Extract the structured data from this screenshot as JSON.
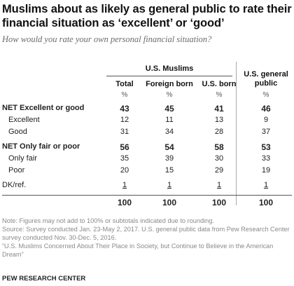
{
  "title": "Muslims about as likely as general public to rate their financial situation as ‘excellent’ or ‘good’",
  "subtitle": "How would you rate your own personal financial situation?",
  "group_header": "U.S. Muslims",
  "columns": [
    "Total",
    "Foreign born",
    "U.S. born",
    "U.S. general public"
  ],
  "pct_symbol": "%",
  "chart_data": {
    "type": "table",
    "title": "Muslims about as likely as general public to rate their financial situation as ‘excellent’ or ‘good’",
    "columns": [
      "Total",
      "Foreign born",
      "U.S. born",
      "U.S. general public"
    ],
    "rows": [
      {
        "label": "NET Excellent or good",
        "values": [
          "43",
          "45",
          "41",
          "46"
        ]
      },
      {
        "label": "Excellent",
        "values": [
          "12",
          "11",
          "13",
          "9"
        ]
      },
      {
        "label": "Good",
        "values": [
          "31",
          "34",
          "28",
          "37"
        ]
      },
      {
        "label": "NET Only fair or poor",
        "values": [
          "56",
          "54",
          "58",
          "53"
        ]
      },
      {
        "label": "Only fair",
        "values": [
          "35",
          "39",
          "30",
          "33"
        ]
      },
      {
        "label": "Poor",
        "values": [
          "20",
          "15",
          "29",
          "19"
        ]
      },
      {
        "label": "DK/ref.",
        "values": [
          "1",
          "1",
          "1",
          "1"
        ]
      },
      {
        "label": "",
        "values": [
          "100",
          "100",
          "100",
          "100"
        ]
      }
    ]
  },
  "notes": [
    "Note: Figures may not add to 100% or subtotals indicated due to rounding.",
    "Source: Survey conducted Jan. 23-May 2, 2017. U.S. general public data from Pew Research Center survey conducted Nov. 30-Dec. 5, 2016.",
    "“U.S. Muslims Concerned About Their Place in Society, but Continue to Believe in the American Dream”"
  ],
  "footer": "PEW RESEARCH CENTER"
}
